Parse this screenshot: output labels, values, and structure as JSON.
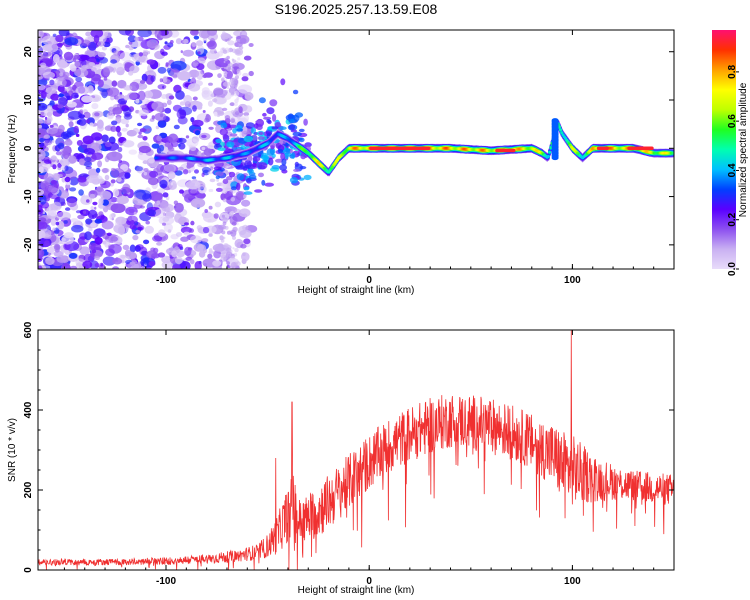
{
  "title": "S196.2025.257.13.59.E08",
  "chart_data": [
    {
      "type": "heatmap",
      "name": "spectrogram",
      "xlabel": "Height of straight line (km)",
      "ylabel": "Frequency (Hz)",
      "xlim": [
        -163,
        150
      ],
      "ylim": [
        -25,
        24.5
      ],
      "xticks": [
        -100,
        0,
        100
      ],
      "yticks": [
        -20,
        -10,
        0,
        10,
        20
      ],
      "colorbar": {
        "label": "Normalized spectral amplitude",
        "range": [
          0,
          0.97
        ],
        "ticks": [
          0.0,
          0.2,
          0.4,
          0.6,
          0.8
        ],
        "colors": [
          "#e8dcfa",
          "#c9b0f2",
          "#8c4ff0",
          "#5a00ff",
          "#0040ff",
          "#00c0ff",
          "#00ffb0",
          "#20ff20",
          "#c0ff00",
          "#ffff00",
          "#ffa000",
          "#ff3000",
          "#ff1070"
        ]
      },
      "ridge": {
        "x": [
          -105,
          -90,
          -80,
          -70,
          -60,
          -50,
          -45,
          -40,
          -35,
          -30,
          -25,
          -20,
          -15,
          -10,
          0,
          20,
          40,
          60,
          80,
          85,
          88,
          90,
          93,
          95,
          100,
          105,
          110,
          120,
          130,
          140,
          150
        ],
        "freq": [
          -2,
          -2,
          -2.5,
          -2,
          -1,
          1,
          3,
          2,
          0.5,
          -1,
          -3,
          -5,
          -2,
          0,
          0,
          0,
          0,
          -0.5,
          0,
          -1,
          -2,
          1,
          5,
          3,
          0,
          -2,
          0,
          0,
          0,
          -1,
          -1
        ],
        "amplitude": [
          0.35,
          0.4,
          0.45,
          0.45,
          0.4,
          0.45,
          0.4,
          0.45,
          0.55,
          0.75,
          0.8,
          0.7,
          0.75,
          0.85,
          0.95,
          0.95,
          0.9,
          0.88,
          0.85,
          0.75,
          0.6,
          0.65,
          0.55,
          0.6,
          0.75,
          0.6,
          0.85,
          0.9,
          0.85,
          0.8,
          0.75
        ]
      }
    },
    {
      "type": "line",
      "name": "snr",
      "xlabel": "Height of straight line (km)",
      "ylabel": "SNR (10 * v/v)",
      "xlim": [
        -163,
        150
      ],
      "ylim": [
        0,
        600
      ],
      "xticks": [
        -100,
        0,
        100
      ],
      "yticks": [
        0,
        200,
        400,
        600
      ],
      "color": "#f03030",
      "envelope": {
        "x": [
          -163,
          -120,
          -100,
          -80,
          -65,
          -55,
          -50,
          -45,
          -40,
          -37,
          -35,
          -30,
          -25,
          -20,
          -10,
          0,
          10,
          20,
          30,
          40,
          50,
          60,
          70,
          80,
          90,
          95,
          100,
          110,
          120,
          130,
          140,
          150
        ],
        "mean": [
          20,
          20,
          22,
          28,
          35,
          45,
          60,
          90,
          140,
          160,
          120,
          130,
          150,
          170,
          220,
          270,
          310,
          340,
          360,
          375,
          370,
          360,
          345,
          320,
          290,
          260,
          250,
          230,
          220,
          210,
          205,
          200
        ],
        "noise": [
          8,
          8,
          10,
          12,
          15,
          20,
          30,
          50,
          70,
          90,
          60,
          60,
          70,
          70,
          70,
          70,
          70,
          70,
          70,
          70,
          70,
          70,
          70,
          70,
          80,
          90,
          90,
          60,
          45,
          40,
          40,
          40
        ]
      },
      "spikes": [
        {
          "x": -38,
          "y": 420
        },
        {
          "x": -46,
          "y": 280
        },
        {
          "x": 99.5,
          "y": 600
        }
      ]
    }
  ]
}
